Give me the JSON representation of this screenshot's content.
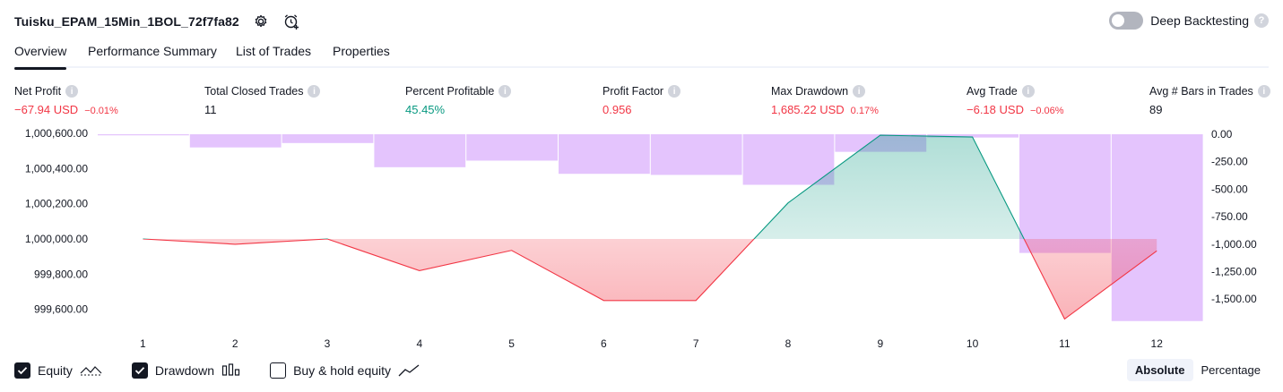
{
  "header": {
    "strategy_name": "Tuisku_EPAM_15Min_1BOL_72f7fa82",
    "settings_icon": "gear-icon",
    "alert_icon": "alarm-clock-plus-icon"
  },
  "deep_backtesting": {
    "label": "Deep Backtesting",
    "enabled": false,
    "help": "?"
  },
  "tabs": [
    {
      "label": "Overview",
      "active": true
    },
    {
      "label": "Performance Summary",
      "active": false
    },
    {
      "label": "List of Trades",
      "active": false
    },
    {
      "label": "Properties",
      "active": false
    }
  ],
  "metrics": [
    {
      "label": "Net Profit",
      "value": "−67.94 USD",
      "sub": "−0.01%",
      "tone": "neg"
    },
    {
      "label": "Total Closed Trades",
      "value": "11",
      "sub": "",
      "tone": "neu"
    },
    {
      "label": "Percent Profitable",
      "value": "45.45%",
      "sub": "",
      "tone": "pos"
    },
    {
      "label": "Profit Factor",
      "value": "0.956",
      "sub": "",
      "tone": "neg"
    },
    {
      "label": "Max Drawdown",
      "value": "1,685.22 USD",
      "sub": "0.17%",
      "tone": "neg"
    },
    {
      "label": "Avg Trade",
      "value": "−6.18 USD",
      "sub": "−0.06%",
      "tone": "neg"
    },
    {
      "label": "Avg # Bars in Trades",
      "value": "89",
      "sub": "",
      "tone": "neu"
    }
  ],
  "chart_data": {
    "type": "line",
    "x_ticks": [
      "1",
      "2",
      "3",
      "4",
      "5",
      "6",
      "7",
      "8",
      "9",
      "10",
      "11",
      "12"
    ],
    "left_axis": {
      "ticks": [
        "1,000,600.00",
        "1,000,400.00",
        "1,000,200.00",
        "1,000,000.00",
        "999,800.00",
        "999,600.00"
      ],
      "tick_values": [
        1000600,
        1000400,
        1000200,
        1000000,
        999800,
        999600
      ],
      "baseline": 1000000
    },
    "right_axis": {
      "ticks": [
        "0.00",
        "-250.00",
        "-500.00",
        "-750.00",
        "-1,000.00",
        "-1,250.00",
        "-1,500.00"
      ],
      "tick_values": [
        0,
        -250,
        -500,
        -750,
        -1000,
        -1250,
        -1500
      ]
    },
    "series": [
      {
        "name": "Equity",
        "x": [
          1,
          2,
          3,
          4,
          5,
          6,
          7,
          8,
          9,
          10,
          11,
          12
        ],
        "values": [
          1000000,
          999970,
          1000000,
          999820,
          999935,
          999650,
          999650,
          1000205,
          1000590,
          1000580,
          999545,
          999932
        ]
      },
      {
        "name": "Drawdown",
        "x": [
          1,
          2,
          3,
          4,
          5,
          6,
          7,
          8,
          9,
          10,
          11,
          12
        ],
        "values": [
          -10,
          -120,
          -80,
          -300,
          -240,
          -360,
          -370,
          -460,
          -160,
          -30,
          -1080,
          -1700
        ]
      }
    ],
    "colors": {
      "equity_up": "#089981",
      "equity_down": "#f23645",
      "drawdown": "#ce93fb"
    }
  },
  "legend": [
    {
      "label": "Equity",
      "checked": true,
      "icon": "equity-line-icon"
    },
    {
      "label": "Drawdown",
      "checked": true,
      "icon": "drawdown-bars-icon"
    },
    {
      "label": "Buy & hold equity",
      "checked": false,
      "icon": "buy-hold-line-icon"
    }
  ],
  "scale_toggle": [
    {
      "label": "Absolute",
      "active": true
    },
    {
      "label": "Percentage",
      "active": false
    }
  ]
}
